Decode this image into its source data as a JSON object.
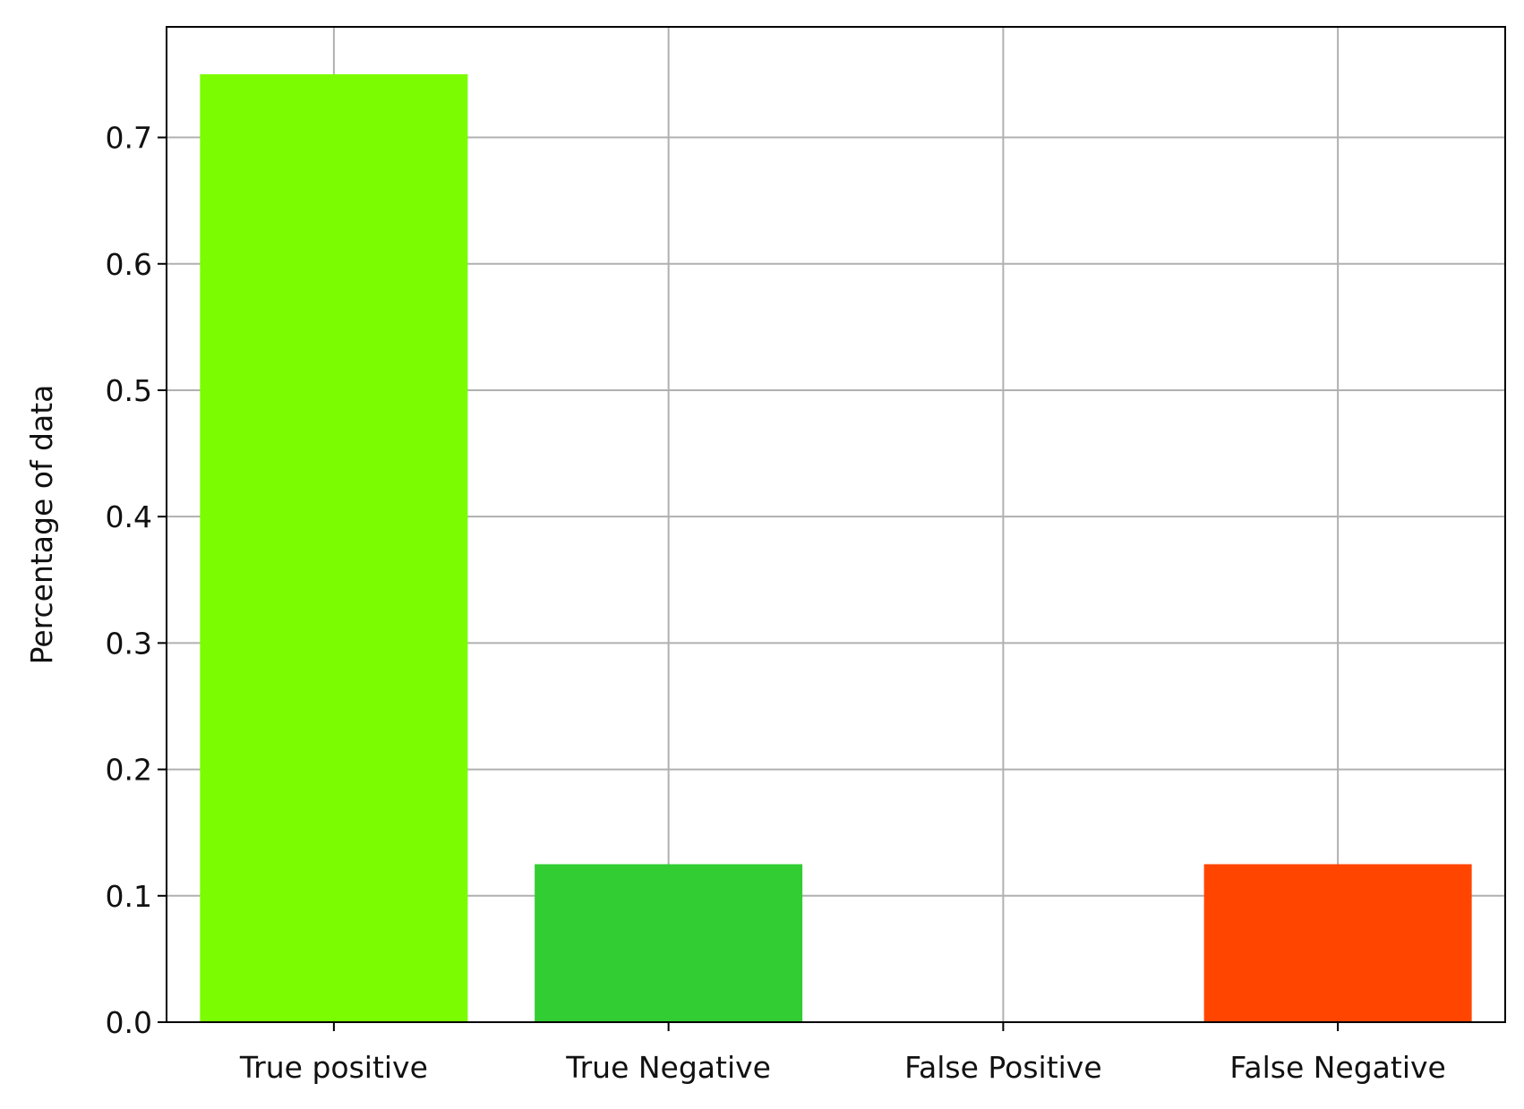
{
  "chart_data": {
    "type": "bar",
    "categories": [
      "True positive",
      "True Negative",
      "False Positive",
      "False Negative"
    ],
    "values": [
      0.75,
      0.125,
      0.0,
      0.125
    ],
    "colors": [
      "#7CFC00",
      "#32CD32",
      "#FFFFFF",
      "#FF4500"
    ],
    "title": "",
    "xlabel": "",
    "ylabel": "Percentage of data",
    "ylim": [
      0,
      0.7875
    ],
    "yticks": [
      "0.0",
      "0.1",
      "0.2",
      "0.3",
      "0.4",
      "0.5",
      "0.6",
      "0.7"
    ],
    "grid": true,
    "grid_color": "#b0b0b0"
  }
}
